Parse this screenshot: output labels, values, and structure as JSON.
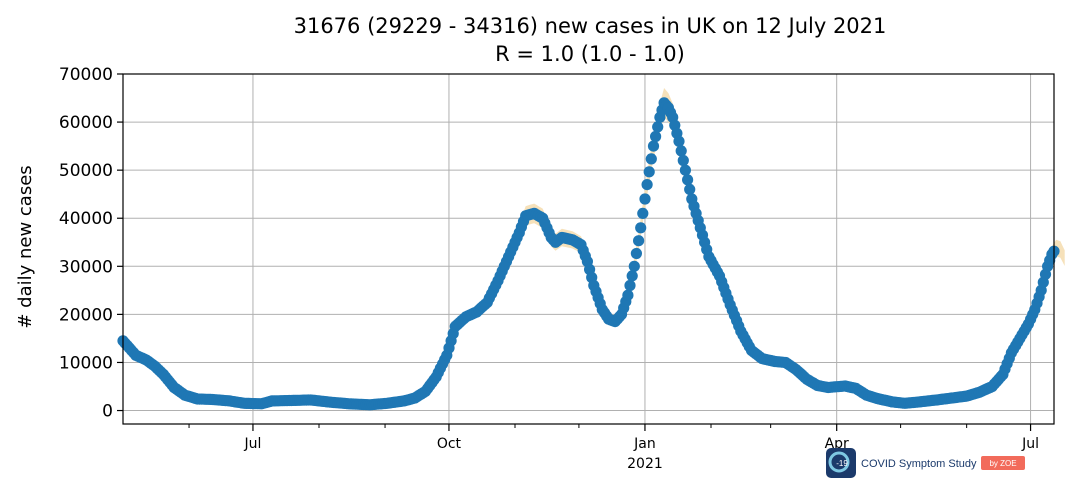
{
  "chart_data": {
    "type": "scatter",
    "title": "31676 (29229 - 34316) new cases in UK on 12 July 2021",
    "subtitle": "R = 1.0 (1.0 - 1.0)",
    "xlabel": "",
    "ylabel": "# daily new cases",
    "ylim": [
      -2800,
      70000
    ],
    "xlim": [
      "2020-05-01",
      "2021-07-12"
    ],
    "y_ticks": [
      0,
      10000,
      20000,
      30000,
      40000,
      50000,
      60000,
      70000
    ],
    "x_ticks": [
      {
        "date": "2020-07-01",
        "label": "Jul"
      },
      {
        "date": "2020-10-01",
        "label": "Oct"
      },
      {
        "date": "2021-01-01",
        "label": "Jan",
        "sublabel": "2021"
      },
      {
        "date": "2021-04-01",
        "label": "Apr"
      },
      {
        "date": "2021-07-01",
        "label": "Jul"
      }
    ],
    "x_minor_ticks": [
      "2020-06-01",
      "2020-08-01",
      "2020-09-01",
      "2020-11-01",
      "2020-12-01",
      "2021-02-01",
      "2021-03-01",
      "2021-05-01",
      "2021-06-01"
    ],
    "grid": true,
    "marker_color": "#1f77b4",
    "band_color": "#f5deb3",
    "series": [
      {
        "points": [
          [
            "2020-05-01",
            14500
          ],
          [
            "2020-05-04",
            13000
          ],
          [
            "2020-05-07",
            11500
          ],
          [
            "2020-05-12",
            10500
          ],
          [
            "2020-05-16",
            9200
          ],
          [
            "2020-05-20",
            7500
          ],
          [
            "2020-05-25",
            4800
          ],
          [
            "2020-05-30",
            3200
          ],
          [
            "2020-06-05",
            2400
          ],
          [
            "2020-06-12",
            2300
          ],
          [
            "2020-06-20",
            2000
          ],
          [
            "2020-06-27",
            1500
          ],
          [
            "2020-07-05",
            1400
          ],
          [
            "2020-07-10",
            2000
          ],
          [
            "2020-07-20",
            2100
          ],
          [
            "2020-07-28",
            2200
          ],
          [
            "2020-08-05",
            1800
          ],
          [
            "2020-08-15",
            1400
          ],
          [
            "2020-08-25",
            1200
          ],
          [
            "2020-09-02",
            1500
          ],
          [
            "2020-09-10",
            2000
          ],
          [
            "2020-09-15",
            2600
          ],
          [
            "2020-09-20",
            4000
          ],
          [
            "2020-09-25",
            7000
          ],
          [
            "2020-09-30",
            11500
          ],
          [
            "2020-10-04",
            17500
          ],
          [
            "2020-10-09",
            19500
          ],
          [
            "2020-10-14",
            20500
          ],
          [
            "2020-10-19",
            22500
          ],
          [
            "2020-10-24",
            27000
          ],
          [
            "2020-10-29",
            32000
          ],
          [
            "2020-11-03",
            37000
          ],
          [
            "2020-11-06",
            40500
          ],
          [
            "2020-11-10",
            41000
          ],
          [
            "2020-11-14",
            40000
          ],
          [
            "2020-11-18",
            36000
          ],
          [
            "2020-11-20",
            35000
          ],
          [
            "2020-11-23",
            36000
          ],
          [
            "2020-11-28",
            35500
          ],
          [
            "2020-12-02",
            34500
          ],
          [
            "2020-12-05",
            31000
          ],
          [
            "2020-12-08",
            26000
          ],
          [
            "2020-12-12",
            21000
          ],
          [
            "2020-12-15",
            19000
          ],
          [
            "2020-12-18",
            18500
          ],
          [
            "2020-12-21",
            20000
          ],
          [
            "2020-12-24",
            24000
          ],
          [
            "2020-12-27",
            30000
          ],
          [
            "2020-12-30",
            38000
          ],
          [
            "2021-01-02",
            47000
          ],
          [
            "2021-01-05",
            55000
          ],
          [
            "2021-01-08",
            61000
          ],
          [
            "2021-01-10",
            64000
          ],
          [
            "2021-01-12",
            63000
          ],
          [
            "2021-01-14",
            61000
          ],
          [
            "2021-01-17",
            56000
          ],
          [
            "2021-01-20",
            50000
          ],
          [
            "2021-01-23",
            44000
          ],
          [
            "2021-01-27",
            38000
          ],
          [
            "2021-01-31",
            32000
          ],
          [
            "2021-02-05",
            28000
          ],
          [
            "2021-02-10",
            22000
          ],
          [
            "2021-02-15",
            16500
          ],
          [
            "2021-02-20",
            12500
          ],
          [
            "2021-02-25",
            10800
          ],
          [
            "2021-03-03",
            10200
          ],
          [
            "2021-03-08",
            10000
          ],
          [
            "2021-03-13",
            8500
          ],
          [
            "2021-03-18",
            6500
          ],
          [
            "2021-03-23",
            5200
          ],
          [
            "2021-03-28",
            4800
          ],
          [
            "2021-04-05",
            5100
          ],
          [
            "2021-04-10",
            4600
          ],
          [
            "2021-04-15",
            3200
          ],
          [
            "2021-04-20",
            2500
          ],
          [
            "2021-04-27",
            1800
          ],
          [
            "2021-05-03",
            1500
          ],
          [
            "2021-05-10",
            1800
          ],
          [
            "2021-05-18",
            2200
          ],
          [
            "2021-05-25",
            2600
          ],
          [
            "2021-06-01",
            3000
          ],
          [
            "2021-06-07",
            3800
          ],
          [
            "2021-06-13",
            5000
          ],
          [
            "2021-06-18",
            7500
          ],
          [
            "2021-06-22",
            12000
          ],
          [
            "2021-06-26",
            15000
          ],
          [
            "2021-06-30",
            18000
          ],
          [
            "2021-07-03",
            21000
          ],
          [
            "2021-07-06",
            25000
          ],
          [
            "2021-07-09",
            30000
          ],
          [
            "2021-07-11",
            32500
          ],
          [
            "2021-07-13",
            33800
          ],
          [
            "2021-07-15",
            33500
          ],
          [
            "2021-07-17",
            31700
          ]
        ]
      }
    ]
  },
  "logo": {
    "badge": "-19",
    "text": "COVID Symptom Study",
    "by": "by ZOE"
  }
}
